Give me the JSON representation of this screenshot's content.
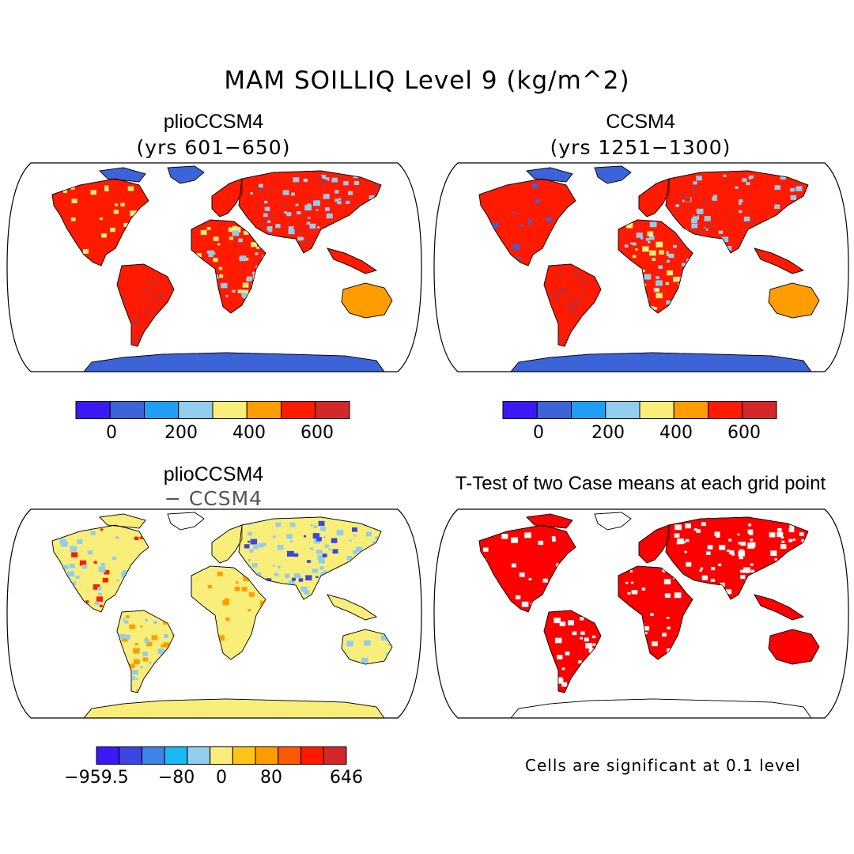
{
  "figure": {
    "title": "MAM SOILLIQ Level 9 (kg/m^2)",
    "note": "Cells are significant at 0.1 level"
  },
  "panels": [
    {
      "title": "plioCCSM4",
      "subtitle": "(yrs 601−650)",
      "variant": "plio"
    },
    {
      "title": "CCSM4",
      "subtitle": "(yrs 1251−1300)",
      "variant": "ccsm"
    },
    {
      "title": "plioCCSM4",
      "subtitle": "− CCSM4",
      "variant": "diff"
    },
    {
      "title": "T-Test of two Case means at each grid point",
      "subtitle": "",
      "variant": "ttest"
    }
  ],
  "colorbars": {
    "absolute": {
      "colors": [
        "#3a19f5",
        "#3d63d8",
        "#1e9ff5",
        "#93cdee",
        "#f9ee7a",
        "#ff9d00",
        "#ff1a00",
        "#d42828"
      ],
      "tick_labels": [
        "0",
        "200",
        "400",
        "600"
      ]
    },
    "difference": {
      "colors": [
        "#3a19f5",
        "#3d46e0",
        "#3f83e6",
        "#1cb8f5",
        "#93cdee",
        "#f9ee7a",
        "#ffc61a",
        "#ff9d00",
        "#ff5a00",
        "#ff1a00",
        "#d42828"
      ],
      "tick_labels": [
        "−959.5",
        "−80",
        "0",
        "80",
        "646"
      ]
    }
  },
  "palette": {
    "ice": "#3d63d8",
    "ttest_red": "#ff0000",
    "diff_base": "#f9ee7a"
  }
}
